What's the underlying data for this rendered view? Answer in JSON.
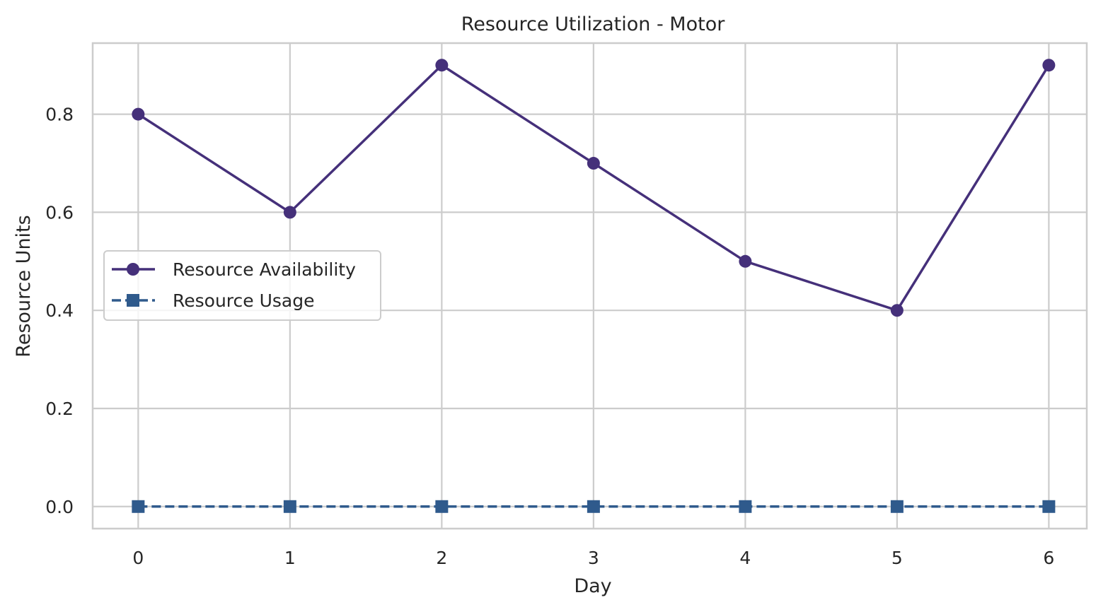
{
  "chart_data": {
    "type": "line",
    "title": "Resource Utilization - Motor",
    "xlabel": "Day",
    "ylabel": "Resource Units",
    "x": [
      0,
      1,
      2,
      3,
      4,
      5,
      6
    ],
    "x_ticks": [
      "0",
      "1",
      "2",
      "3",
      "4",
      "5",
      "6"
    ],
    "y_ticks": [
      "0.0",
      "0.2",
      "0.4",
      "0.6",
      "0.8"
    ],
    "xlim": [
      -0.3,
      6.25
    ],
    "ylim": [
      -0.045,
      0.945
    ],
    "grid": true,
    "legend_position": "center-left",
    "series": [
      {
        "name": "Resource Availability",
        "values": [
          0.8,
          0.6,
          0.9,
          0.7,
          0.5,
          0.4,
          0.9
        ],
        "color": "#45307a",
        "marker": "circle",
        "linestyle": "solid"
      },
      {
        "name": "Resource Usage",
        "values": [
          0,
          0,
          0,
          0,
          0,
          0,
          0
        ],
        "color": "#2f5a8c",
        "marker": "square",
        "linestyle": "dashed"
      }
    ]
  }
}
